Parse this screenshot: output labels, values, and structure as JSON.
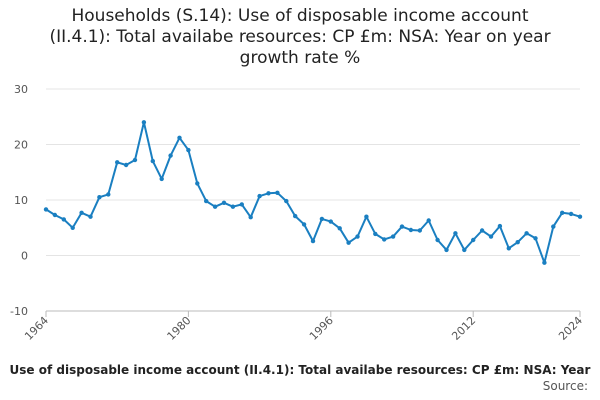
{
  "title_lines": [
    "Households (S.14): Use of disposable income account",
    "(II.4.1): Total availabe resources: CP £m: NSA: Year on year",
    "growth rate %"
  ],
  "caption": "Use of disposable income account (II.4.1): Total availabe resources: CP £m: NSA: Year",
  "source_label": "Source:",
  "chart_data": {
    "type": "line",
    "title": "Households (S.14): Use of disposable income account (II.4.1): Total availabe resources: CP £m: NSA: Year on year growth rate %",
    "xlabel": "",
    "ylabel": "",
    "ylim": [
      -10,
      30
    ],
    "yticks": [
      -10,
      0,
      10,
      20,
      30
    ],
    "xlim": [
      1964,
      2024
    ],
    "xticks": [
      1964,
      1980,
      1996,
      2012,
      2024
    ],
    "grid": true,
    "color": "#1a7fc1",
    "x": [
      1964,
      1965,
      1966,
      1967,
      1968,
      1969,
      1970,
      1971,
      1972,
      1973,
      1974,
      1975,
      1976,
      1977,
      1978,
      1979,
      1980,
      1981,
      1982,
      1983,
      1984,
      1985,
      1986,
      1987,
      1988,
      1989,
      1990,
      1991,
      1992,
      1993,
      1994,
      1995,
      1996,
      1997,
      1998,
      1999,
      2000,
      2001,
      2002,
      2003,
      2004,
      2005,
      2006,
      2007,
      2008,
      2009,
      2010,
      2011,
      2012,
      2013,
      2014,
      2015,
      2016,
      2017,
      2018,
      2019,
      2020,
      2021,
      2022,
      2023,
      2024
    ],
    "values": [
      8.3,
      7.3,
      6.5,
      5.0,
      7.7,
      7.0,
      10.5,
      11.0,
      16.8,
      16.3,
      17.2,
      24.0,
      17.0,
      13.8,
      18.0,
      21.2,
      19.0,
      13.0,
      9.8,
      8.8,
      9.5,
      8.8,
      9.2,
      6.9,
      10.7,
      11.2,
      11.3,
      9.8,
      7.1,
      5.6,
      2.6,
      6.6,
      6.1,
      4.9,
      2.3,
      3.4,
      7.0,
      3.9,
      2.9,
      3.4,
      5.2,
      4.6,
      4.5,
      6.3,
      2.8,
      1.0,
      4.0,
      1.0,
      2.8,
      4.5,
      3.4,
      5.3,
      1.3,
      2.4,
      4.0,
      3.1,
      -1.3,
      5.2,
      7.7,
      7.5,
      7.0
    ]
  }
}
